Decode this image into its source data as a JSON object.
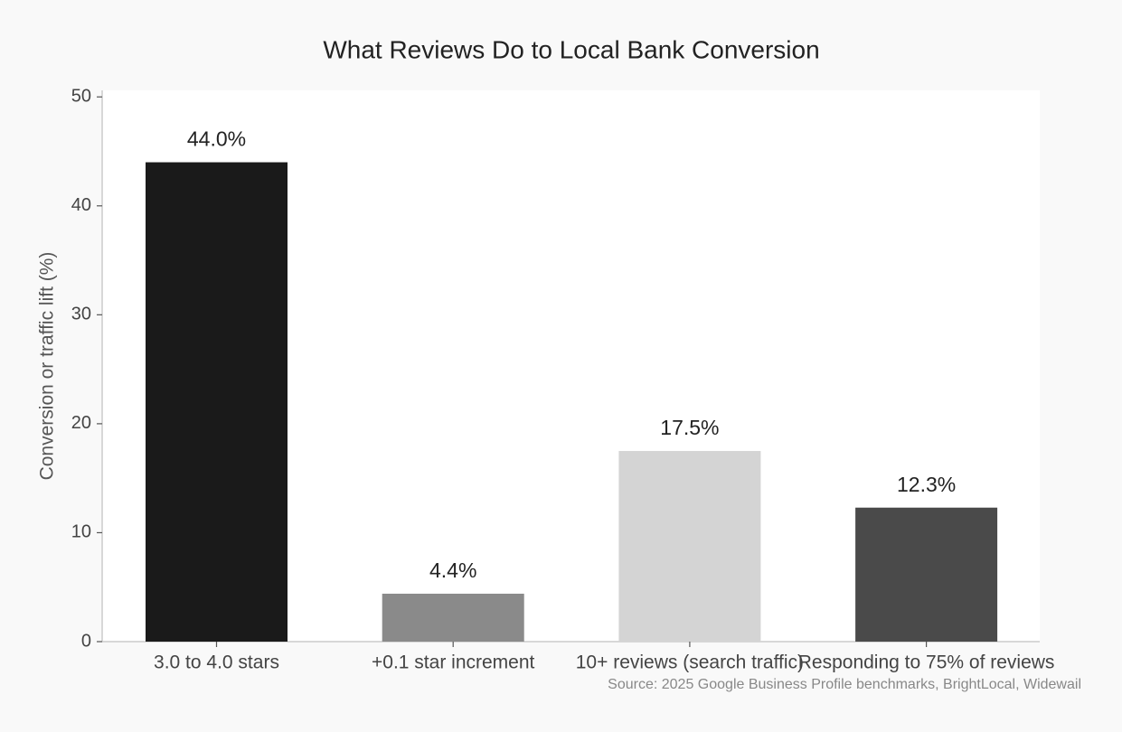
{
  "chart_data": {
    "type": "bar",
    "title": "What Reviews Do to Local Bank Conversion",
    "ylabel": "Conversion or traffic lift (%)",
    "source": "Source: 2025 Google Business Profile benchmarks, BrightLocal, Widewail",
    "categories": [
      "3.0 to 4.0 stars",
      "+0.1 star increment",
      "10+ reviews (search traffic)",
      "Responding to 75% of reviews"
    ],
    "values": [
      44.0,
      4.4,
      17.5,
      12.3
    ],
    "value_labels": [
      "44.0%",
      "4.4%",
      "17.5%",
      "12.3%"
    ],
    "colors": [
      "#1a1a1a",
      "#8a8a8a",
      "#d4d4d4",
      "#4a4a4a"
    ],
    "ylim": [
      0,
      50.6
    ],
    "yticks": [
      0,
      10,
      20,
      30,
      40,
      50
    ],
    "grid": false
  }
}
